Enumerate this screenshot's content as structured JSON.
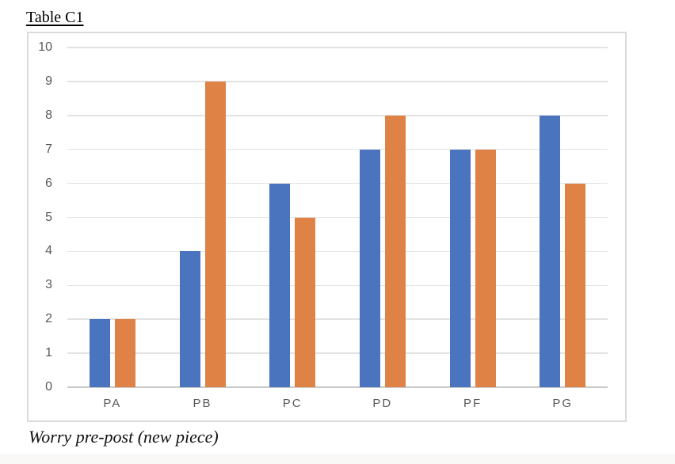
{
  "page": {
    "title": "Table C1",
    "caption": "Worry pre-post (new piece)"
  },
  "chart_data": {
    "type": "bar",
    "title": "Table C1",
    "caption": "Worry pre-post (new piece)",
    "categories": [
      "PA",
      "PB",
      "PC",
      "PD",
      "PF",
      "PG"
    ],
    "series": [
      {
        "name": "blue-series",
        "color": "#4B74BE",
        "values": [
          2,
          4,
          6,
          7,
          7,
          8
        ]
      },
      {
        "name": "orange-series",
        "color": "#DE8246",
        "values": [
          2,
          9,
          5,
          8,
          7,
          6
        ]
      }
    ],
    "xlabel": "",
    "ylabel": "",
    "ylim": [
      0,
      10
    ],
    "yticks": [
      0,
      1,
      2,
      3,
      4,
      5,
      6,
      7,
      8,
      9,
      10
    ],
    "grid": true,
    "legend": "none",
    "colors": {
      "grid": "#E3E3E3",
      "baseline": "#C9C9C9",
      "frame_border": "#DBDBDB",
      "tick_label": "#595959"
    }
  }
}
